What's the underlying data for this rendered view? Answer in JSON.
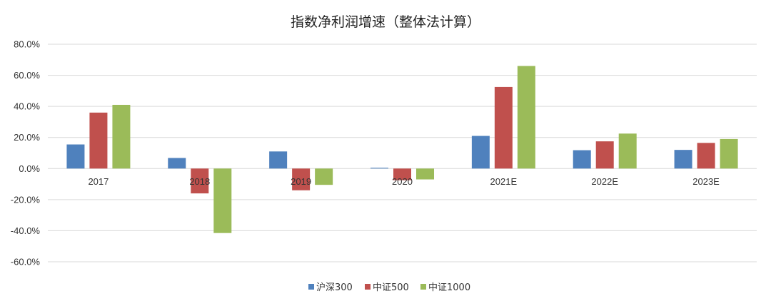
{
  "chart_data": {
    "type": "bar",
    "title": "指数净利润增速（整体法计算）",
    "categories": [
      "2017",
      "2018",
      "2019",
      "2020",
      "2021E",
      "2022E",
      "2023E"
    ],
    "series": [
      {
        "name": "沪深300",
        "color": "#4f81bd",
        "values": [
          15.5,
          6.8,
          11.0,
          0.5,
          21.0,
          11.8,
          12.0
        ]
      },
      {
        "name": "中证500",
        "color": "#c0504d",
        "values": [
          36.0,
          -16.0,
          -14.0,
          -7.5,
          52.5,
          17.5,
          16.5
        ]
      },
      {
        "name": "中证1000",
        "color": "#9bbb59",
        "values": [
          41.0,
          -41.5,
          -10.5,
          -7.0,
          66.0,
          22.5,
          19.0
        ]
      }
    ],
    "ylim": [
      -60,
      80
    ],
    "yticks": [
      "80.0%",
      "60.0%",
      "40.0%",
      "20.0%",
      "0.0%",
      "-20.0%",
      "-40.0%",
      "-60.0%"
    ],
    "ytick_values": [
      80,
      60,
      40,
      20,
      0,
      -20,
      -40,
      -60
    ],
    "grid": true,
    "legend_position": "bottom"
  }
}
